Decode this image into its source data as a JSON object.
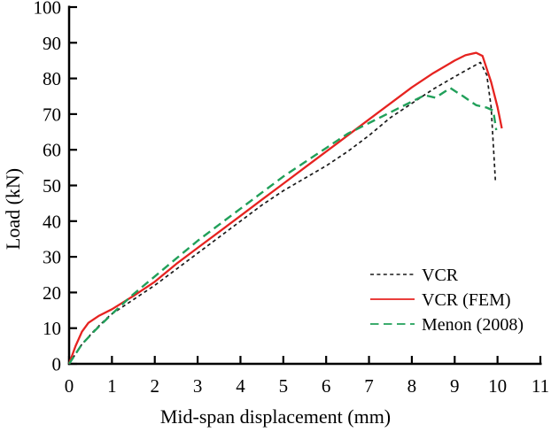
{
  "figure": {
    "background": "#ffffff",
    "axis_color": "#000000"
  },
  "chart_data": {
    "type": "line",
    "title": "",
    "xlabel": "Mid-span displacement (mm)",
    "ylabel": "Load (kN)",
    "xlim": [
      0,
      11
    ],
    "ylim": [
      0,
      100
    ],
    "x_ticks": [
      0,
      1,
      2,
      3,
      4,
      5,
      6,
      7,
      8,
      9,
      10,
      11
    ],
    "y_ticks": [
      0,
      10,
      20,
      30,
      40,
      50,
      60,
      70,
      80,
      90,
      100
    ],
    "grid": false,
    "tick_style": "inside",
    "legend_position": "inside-lower-right",
    "series": [
      {
        "name": "VCR",
        "color": "#1a1a1a",
        "line_style": "dashed-fine",
        "line_width": 1.7,
        "points": [
          [
            0,
            0
          ],
          [
            0.3,
            5.5
          ],
          [
            0.6,
            9.5
          ],
          [
            0.9,
            13
          ],
          [
            1,
            14
          ],
          [
            1.5,
            18
          ],
          [
            2,
            22
          ],
          [
            2.5,
            26.5
          ],
          [
            3,
            31
          ],
          [
            3.5,
            35.5
          ],
          [
            4,
            40
          ],
          [
            4.5,
            44.5
          ],
          [
            5,
            48.5
          ],
          [
            5.5,
            52
          ],
          [
            6,
            55.5
          ],
          [
            6.5,
            59.5
          ],
          [
            7,
            64
          ],
          [
            7.5,
            69
          ],
          [
            8,
            73
          ],
          [
            8.5,
            77
          ],
          [
            9,
            80.5
          ],
          [
            9.3,
            82.5
          ],
          [
            9.6,
            84.5
          ],
          [
            9.75,
            81
          ],
          [
            9.85,
            72
          ],
          [
            9.95,
            51.5
          ]
        ]
      },
      {
        "name": "VCR (FEM)",
        "color": "#e62320",
        "line_style": "solid",
        "line_width": 2.3,
        "points": [
          [
            0,
            0
          ],
          [
            0.15,
            5
          ],
          [
            0.3,
            9
          ],
          [
            0.45,
            11.5
          ],
          [
            0.7,
            13.5
          ],
          [
            1,
            15.3
          ],
          [
            1.5,
            19
          ],
          [
            2,
            23
          ],
          [
            2.5,
            28
          ],
          [
            3,
            32.5
          ],
          [
            3.5,
            37
          ],
          [
            4,
            41.5
          ],
          [
            4.5,
            46
          ],
          [
            5,
            50.5
          ],
          [
            5.5,
            55
          ],
          [
            6,
            59.5
          ],
          [
            6.5,
            64
          ],
          [
            7,
            68.5
          ],
          [
            7.5,
            73
          ],
          [
            8,
            77.5
          ],
          [
            8.5,
            81.5
          ],
          [
            9,
            85
          ],
          [
            9.25,
            86.5
          ],
          [
            9.5,
            87.2
          ],
          [
            9.65,
            86.3
          ],
          [
            9.85,
            79
          ],
          [
            10,
            72
          ],
          [
            10.1,
            66
          ]
        ]
      },
      {
        "name": "Menon (2008)",
        "color": "#21a05a",
        "line_style": "dashed-long",
        "line_width": 2.4,
        "points": [
          [
            0,
            0
          ],
          [
            0.3,
            5.5
          ],
          [
            0.6,
            9.3
          ],
          [
            1,
            14
          ],
          [
            1.5,
            19.5
          ],
          [
            2,
            24.5
          ],
          [
            2.5,
            29.5
          ],
          [
            3,
            34.5
          ],
          [
            3.5,
            39
          ],
          [
            4,
            43.5
          ],
          [
            4.5,
            48
          ],
          [
            5,
            52.5
          ],
          [
            5.5,
            56.5
          ],
          [
            6,
            60.5
          ],
          [
            6.5,
            64.5
          ],
          [
            7,
            67.5
          ],
          [
            7.5,
            70.5
          ],
          [
            8,
            73.5
          ],
          [
            8.3,
            75.3
          ],
          [
            8.55,
            74.6
          ],
          [
            8.9,
            77.3
          ],
          [
            9.2,
            75
          ],
          [
            9.5,
            72.5
          ],
          [
            9.75,
            71.8
          ],
          [
            9.9,
            71
          ],
          [
            9.97,
            65.5
          ]
        ]
      }
    ]
  }
}
